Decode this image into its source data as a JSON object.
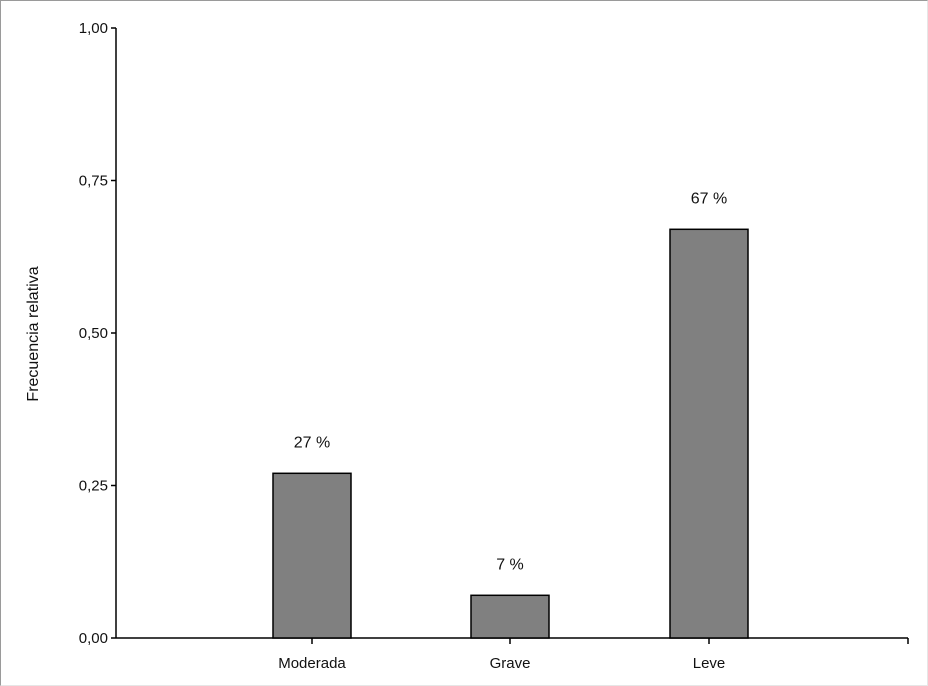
{
  "chart_data": {
    "type": "bar",
    "categories": [
      "Moderada",
      "Grave",
      "Leve"
    ],
    "values": [
      0.27,
      0.07,
      0.67
    ],
    "data_labels": [
      "27 %",
      "7 %",
      "67 %"
    ],
    "title": "",
    "xlabel": "",
    "ylabel": "Frecuencia relativa",
    "ylim": [
      0,
      1
    ],
    "yticks": [
      0,
      0.25,
      0.5,
      0.75,
      1
    ],
    "ytick_labels": [
      "0,00",
      "0,25",
      "0,50",
      "0,75",
      "1,00"
    ],
    "grid": false,
    "legend": "none",
    "bar_color": "#808080",
    "bar_edge_color": "#000000"
  }
}
